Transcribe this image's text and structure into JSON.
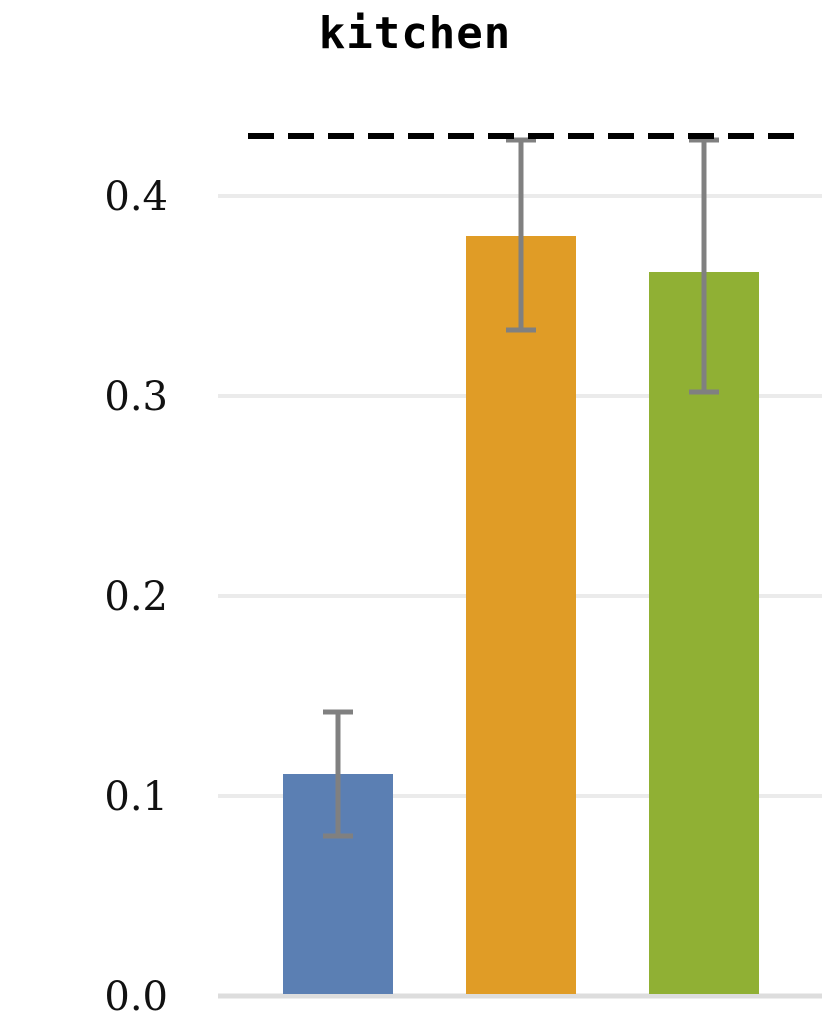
{
  "chart_data": {
    "type": "bar",
    "title": "kitchen",
    "xlabel": "",
    "ylabel": "",
    "categories": [
      "",
      "",
      ""
    ],
    "values": [
      0.111,
      0.38,
      0.362
    ],
    "error_low": [
      0.08,
      0.333,
      0.302
    ],
    "error_high": [
      0.142,
      0.428,
      0.428
    ],
    "colors": [
      "#5b7fb3",
      "#e09c26",
      "#90b034"
    ],
    "error_color": "#808080",
    "reference_line": {
      "value": 0.43,
      "style": "dashed",
      "color": "#000000"
    },
    "ylim": [
      0,
      0.43
    ],
    "yticks": [
      0.0,
      0.1,
      0.2,
      0.3,
      0.4
    ],
    "ytick_labels": [
      "0.0",
      "0.1",
      "0.2",
      "0.3",
      "0.4"
    ],
    "grid": true,
    "grid_color": "#ebebeb",
    "legend": "none"
  }
}
